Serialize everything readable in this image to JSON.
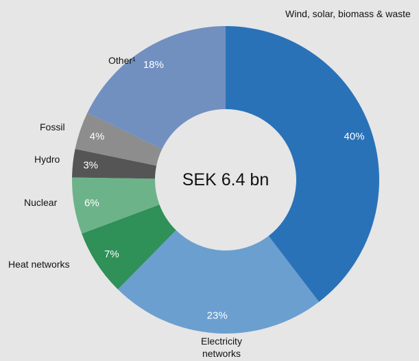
{
  "chart_data": {
    "type": "donut",
    "center_text": "SEK 6.4 bn",
    "categories": [
      "Wind, solar, biomass & waste",
      "Electricity networks",
      "Heat networks",
      "Nuclear",
      "Hydro",
      "Fossil",
      "Other¹"
    ],
    "values": [
      40,
      23,
      7,
      6,
      3,
      4,
      18
    ],
    "value_labels": [
      "40%",
      "23%",
      "7%",
      "6%",
      "3%",
      "4%",
      "18%"
    ],
    "colors": [
      "#2a72b8",
      "#6b9fcf",
      "#2f9058",
      "#6db38a",
      "#555555",
      "#8d8d8d",
      "#7190c0"
    ]
  }
}
